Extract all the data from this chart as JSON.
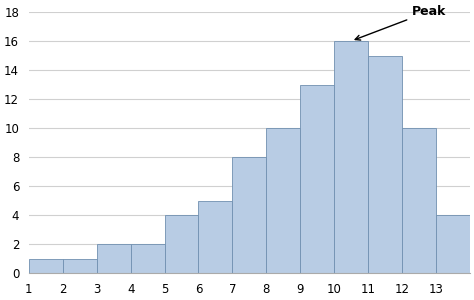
{
  "categories": [
    1,
    2,
    3,
    4,
    5,
    6,
    7,
    8,
    9,
    10,
    11,
    12,
    13
  ],
  "values": [
    1,
    1,
    2,
    2,
    4,
    5,
    8,
    10,
    13,
    16,
    15,
    10,
    4
  ],
  "bar_color": "#b8cce4",
  "bar_edge_color": "#7090b0",
  "ylim": [
    0,
    18
  ],
  "yticks": [
    0,
    2,
    4,
    6,
    8,
    10,
    12,
    14,
    16,
    18
  ],
  "xticks": [
    1,
    2,
    3,
    4,
    5,
    6,
    7,
    8,
    9,
    10,
    11,
    12,
    13
  ],
  "peak_label": "Peak",
  "peak_x": 10,
  "peak_y": 16,
  "background_color": "#ffffff",
  "grid_color": "#d0d0d0"
}
